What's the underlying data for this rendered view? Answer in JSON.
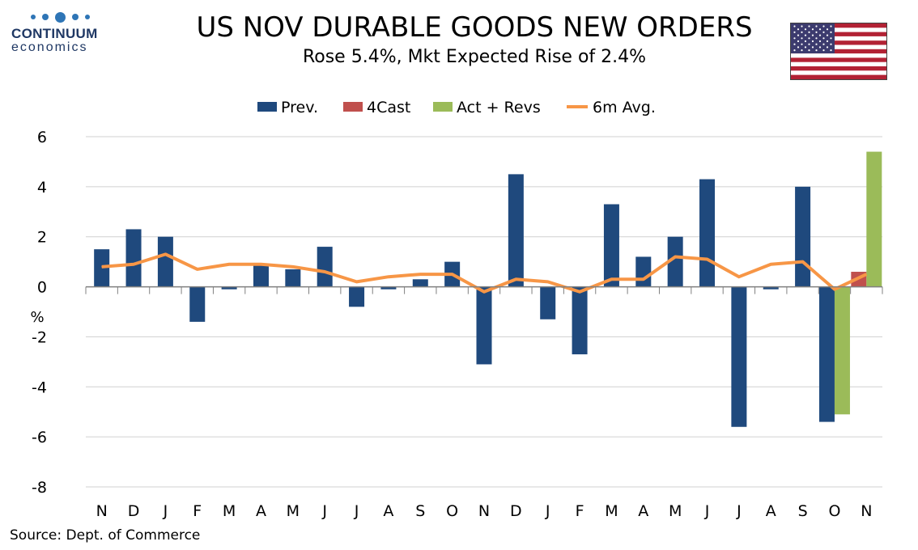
{
  "header": {
    "title": "US NOV DURABLE GOODS NEW ORDERS",
    "subtitle": "Rose 5.4%, Mkt Expected Rise of 2.4%"
  },
  "logo": {
    "name": "CONTINUUM",
    "sub": "economics",
    "color": "#1f3864"
  },
  "flag": {
    "icon": "us-flag-icon"
  },
  "source": "Source: Dept. of Commerce",
  "chart_data": {
    "type": "bar",
    "ylabel": "%",
    "ylim": [
      -8,
      6
    ],
    "yticks": [
      6,
      4,
      2,
      0,
      -2,
      -4,
      -6,
      -8
    ],
    "grid": true,
    "legend_position": "top",
    "categories": [
      "N",
      "D",
      "J",
      "F",
      "M",
      "A",
      "M",
      "J",
      "J",
      "A",
      "S",
      "O",
      "N",
      "D",
      "J",
      "F",
      "M",
      "A",
      "M",
      "J",
      "J",
      "A",
      "S",
      "O",
      "N"
    ],
    "series": [
      {
        "name": "Prev.",
        "type": "bar",
        "color": "#1f497d",
        "values": [
          1.5,
          2.3,
          2.0,
          -1.4,
          -0.1,
          0.9,
          0.7,
          1.6,
          -0.8,
          -0.1,
          0.3,
          1.0,
          -3.1,
          4.5,
          -1.3,
          -2.7,
          3.3,
          1.2,
          2.0,
          4.3,
          -5.6,
          -0.1,
          4.0,
          -5.4,
          null
        ]
      },
      {
        "name": "4Cast",
        "type": "bar",
        "color": "#c0504d",
        "values": [
          null,
          null,
          null,
          null,
          null,
          null,
          null,
          null,
          null,
          null,
          null,
          null,
          null,
          null,
          null,
          null,
          null,
          null,
          null,
          null,
          null,
          null,
          null,
          null,
          0.6
        ]
      },
      {
        "name": "Act + Revs",
        "type": "bar",
        "color": "#9bbb59",
        "values": [
          null,
          null,
          null,
          null,
          null,
          null,
          null,
          null,
          null,
          null,
          null,
          null,
          null,
          null,
          null,
          null,
          null,
          null,
          null,
          null,
          null,
          null,
          null,
          -5.1,
          5.4
        ]
      },
      {
        "name": "6m Avg.",
        "type": "line",
        "color": "#f79646",
        "values": [
          0.8,
          0.9,
          1.3,
          0.7,
          0.9,
          0.9,
          0.8,
          0.6,
          0.2,
          0.4,
          0.5,
          0.5,
          -0.2,
          0.3,
          0.2,
          -0.2,
          0.3,
          0.3,
          1.2,
          1.1,
          0.4,
          0.9,
          1.0,
          -0.1,
          0.5
        ]
      }
    ]
  }
}
